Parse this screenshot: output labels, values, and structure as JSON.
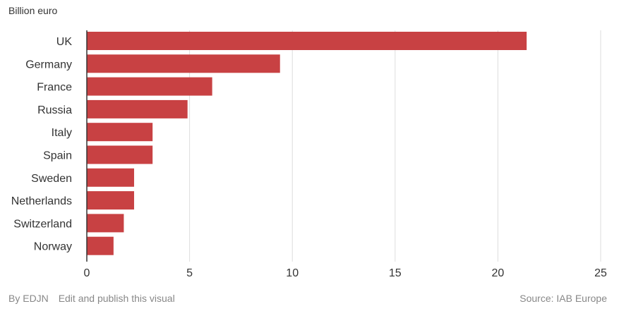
{
  "chart_data": {
    "type": "bar",
    "orientation": "horizontal",
    "unit_label": "Billion euro",
    "categories": [
      "UK",
      "Germany",
      "France",
      "Russia",
      "Italy",
      "Spain",
      "Sweden",
      "Netherlands",
      "Switzerland",
      "Norway"
    ],
    "values": [
      21.4,
      9.4,
      6.1,
      4.9,
      3.2,
      3.2,
      2.3,
      2.3,
      1.8,
      1.3
    ],
    "xlim": [
      0,
      25
    ],
    "x_ticks": [
      0,
      5,
      10,
      15,
      20,
      25
    ],
    "grid": true,
    "bar_color": "#c84143"
  },
  "footer": {
    "byline": "By EDJN",
    "edit_link": "Edit and publish this visual",
    "source": "Source: IAB Europe"
  }
}
